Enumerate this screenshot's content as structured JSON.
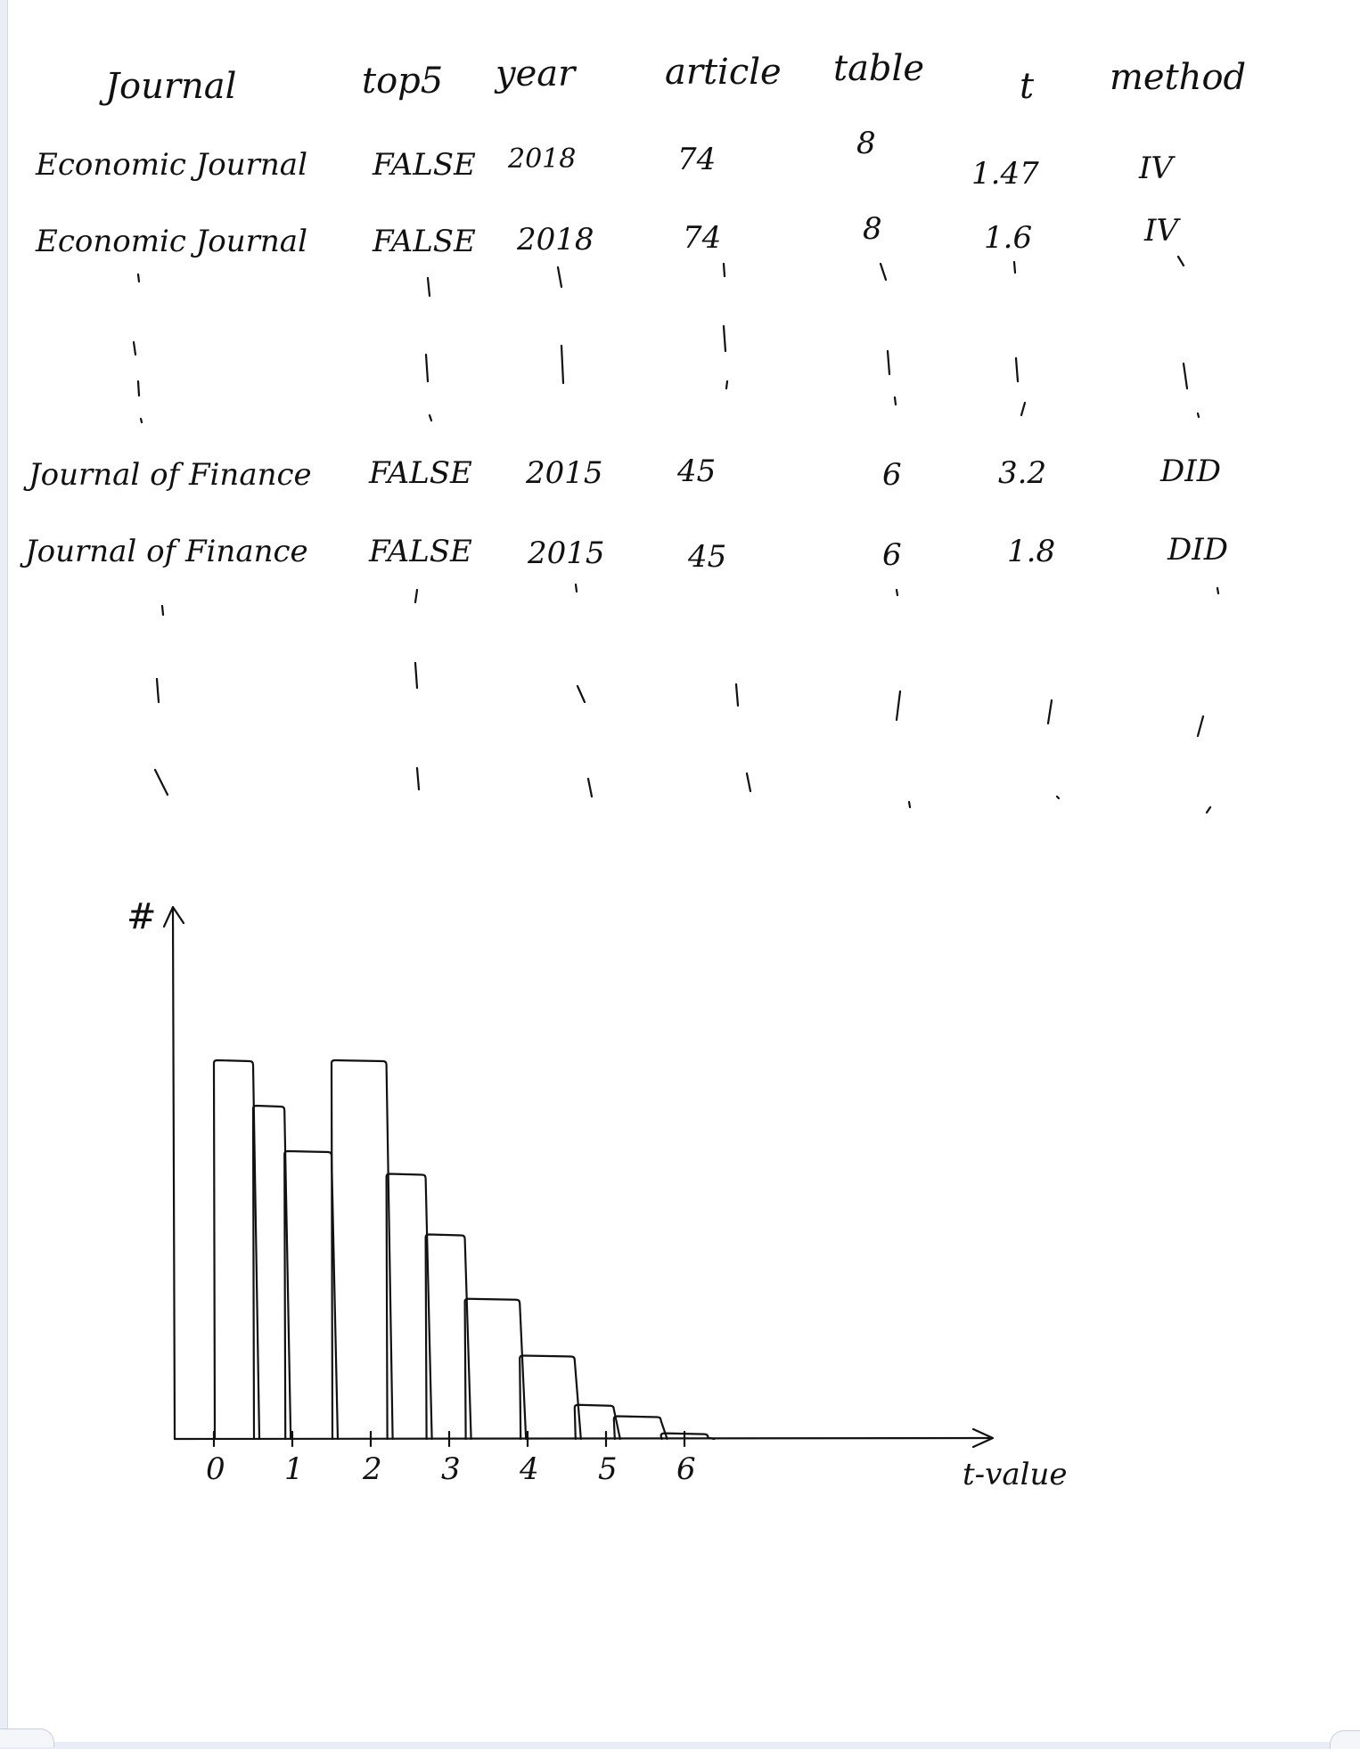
{
  "table": {
    "headers": [
      "Journal",
      "top5",
      "year",
      "article",
      "table",
      "t",
      "method"
    ],
    "rows": [
      [
        "Economic Journal",
        "FALSE",
        "2018",
        "74",
        "8",
        "1.47",
        "IV"
      ],
      [
        "Economic Journal",
        "FALSE",
        "2018",
        "74",
        "8",
        "1.6",
        "IV"
      ],
      [
        "Journal of Finance",
        "FALSE",
        "2015",
        "45",
        "6",
        "3.2",
        "DID"
      ],
      [
        "Journal of Finance",
        "FALSE",
        "2015",
        "45",
        "6",
        "1.8",
        "DID"
      ]
    ]
  },
  "chart_data": {
    "type": "bar",
    "ylabel": "#",
    "xlabel": "t-value",
    "xticks": [
      "0",
      "1",
      "2",
      "3",
      "4",
      "5",
      "6"
    ],
    "xlim": [
      0,
      6.5
    ],
    "ylim": [
      0,
      10
    ],
    "bins": [
      {
        "x0": 0.0,
        "x1": 0.5,
        "value": 10.0
      },
      {
        "x0": 0.5,
        "x1": 0.9,
        "value": 8.8
      },
      {
        "x0": 0.9,
        "x1": 1.5,
        "value": 7.6
      },
      {
        "x0": 1.5,
        "x1": 2.2,
        "value": 10.0
      },
      {
        "x0": 2.2,
        "x1": 2.7,
        "value": 7.0
      },
      {
        "x0": 2.7,
        "x1": 3.2,
        "value": 5.4
      },
      {
        "x0": 3.2,
        "x1": 3.9,
        "value": 3.7
      },
      {
        "x0": 3.9,
        "x1": 4.6,
        "value": 2.2
      },
      {
        "x0": 4.6,
        "x1": 5.1,
        "value": 0.9
      },
      {
        "x0": 5.1,
        "x1": 5.7,
        "value": 0.6
      },
      {
        "x0": 5.7,
        "x1": 6.3,
        "value": 0.15
      }
    ],
    "grid": false
  }
}
